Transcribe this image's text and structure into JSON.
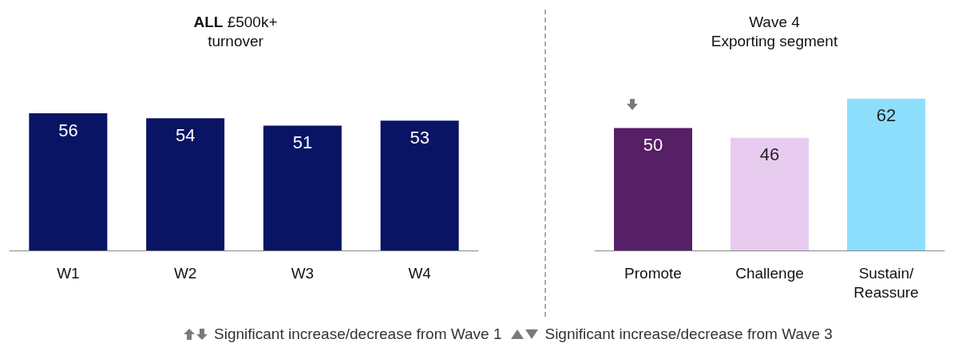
{
  "chart_data": [
    {
      "type": "bar",
      "title": "ALL £500k+ turnover",
      "categories": [
        "W1",
        "W2",
        "W3",
        "W4"
      ],
      "colors": [
        "#0a1464",
        "#0a1464",
        "#0a1464",
        "#0a1464"
      ],
      "values": [
        56,
        54,
        51,
        53
      ],
      "tick_labels": "x",
      "data_labels": true
    },
    {
      "type": "bar",
      "title": "Wave 4 Exporting segment",
      "categories": [
        "Promote",
        "Challenge",
        "Sustain/ Reassure"
      ],
      "colors": [
        "#561f66",
        "#e8ccf0",
        "#8ddffd"
      ],
      "values": [
        50,
        46,
        62
      ],
      "tick_labels": "x",
      "data_labels": true,
      "annotations": [
        "Significant increase/decrease from Wave 1",
        "Significant increase/decrease from Wave 3"
      ]
    }
  ]
}
